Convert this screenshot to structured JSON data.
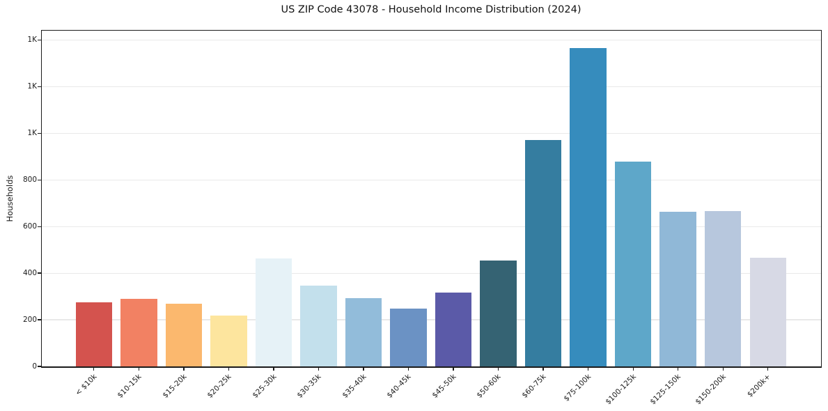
{
  "chart_data": {
    "type": "bar",
    "title": "US ZIP Code 43078 - Household Income Distribution (2024)",
    "xlabel": "",
    "ylabel": "Households",
    "categories": [
      "< $10k",
      "$10-15k",
      "$15-20k",
      "$20-25k",
      "$25-30k",
      "$30-35k",
      "$35-40k",
      "$40-45k",
      "$45-50k",
      "$50-60k",
      "$60-75k",
      "$75-100k",
      "$100-125k",
      "$125-150k",
      "$150-200k",
      "$200k+"
    ],
    "values": [
      275,
      289,
      270,
      217,
      463,
      347,
      293,
      249,
      318,
      454,
      970,
      1365,
      878,
      662,
      667,
      465
    ],
    "bar_colors": [
      "#d4534e",
      "#f28163",
      "#fbb86e",
      "#fde59e",
      "#e6f2f7",
      "#c3e0ec",
      "#92bcda",
      "#6b92c4",
      "#5b5aa8",
      "#356373",
      "#357da0",
      "#368cbd",
      "#5ea7c9",
      "#90b8d7",
      "#b7c7dd",
      "#d7d9e5"
    ],
    "ylim": [
      0,
      1440
    ],
    "yticks": {
      "values": [
        0,
        200,
        400,
        600,
        800,
        1000,
        1200,
        1400
      ],
      "labels": [
        "0",
        "200",
        "400",
        "600",
        "800",
        "1K",
        "1K",
        "1K"
      ]
    },
    "grid": "horizontal",
    "legend_position": "none",
    "axis_color": "#1a1a1a",
    "gridline_color": "#e9e9e9",
    "background": "#ffffff"
  }
}
